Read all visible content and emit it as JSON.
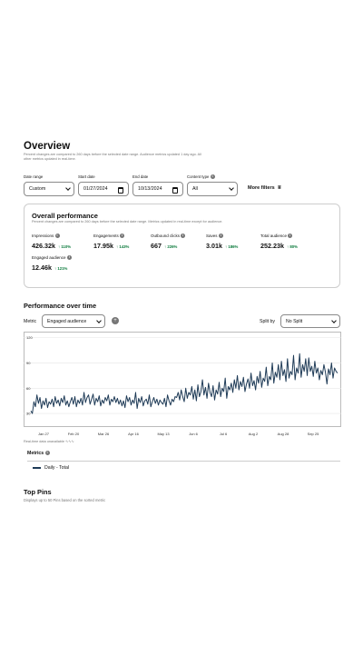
{
  "header": {
    "title": "Overview",
    "subtitle": "Percent changes are compared to 260 days before the selected date range. Audience metrics updated 1 day ago. All other metrics updated in real-time."
  },
  "filters": {
    "date_range_label": "Date range",
    "date_range_value": "Custom",
    "start_date_label": "Start date",
    "start_date_value": "01/27/2024",
    "end_date_label": "End date",
    "end_date_value": "10/13/2024",
    "content_type_label": "Content type",
    "content_type_value": "All",
    "more_filters": "More filters"
  },
  "overall": {
    "title": "Overall performance",
    "subtitle": "Percent changes are compared to 260 days before the selected date range. Metrics updated in real-time except for audience.",
    "metrics": [
      {
        "label": "Impressions",
        "value": "426.32k",
        "change": "110%"
      },
      {
        "label": "Engagements",
        "value": "17.95k",
        "change": "143%"
      },
      {
        "label": "Outbound clicks",
        "value": "667",
        "change": "226%"
      },
      {
        "label": "Saves",
        "value": "3.01k",
        "change": "186%"
      },
      {
        "label": "Total audience",
        "value": "252.23k",
        "change": "80%"
      },
      {
        "label": "Engaged audience",
        "value": "12.46k",
        "change": "121%"
      }
    ]
  },
  "performance": {
    "title": "Performance over time",
    "metric_label": "Metric",
    "metric_value": "Engaged audience",
    "split_label": "Split by",
    "split_value": "No Split",
    "note": "Real-time data unavailable",
    "metrics_label": "Metrics",
    "legend_label": "Daily - Total"
  },
  "top_pins": {
    "title": "Top Pins",
    "subtitle": "Displays up to 50 Pins based on the sorted metric"
  },
  "colors": {
    "line": "#1f3b57",
    "positive": "#0a7a3b",
    "grid": "#e6e6e6"
  },
  "chart_data": {
    "type": "line",
    "x_ticks": [
      "Jan 27",
      "Feb 20",
      "Mar 26",
      "Apr 16",
      "May 13",
      "Jun 6",
      "Jul 6",
      "Aug 2",
      "Aug 28",
      "Sep 25"
    ],
    "y_ticks": [
      30,
      60,
      90,
      120
    ],
    "ylim": [
      15,
      125
    ],
    "series": [
      {
        "name": "Daily - Total",
        "values": [
          33,
          30,
          44,
          38,
          52,
          42,
          49,
          36,
          45,
          40,
          48,
          37,
          44,
          41,
          47,
          38,
          50,
          42,
          46,
          39,
          48,
          43,
          51,
          40,
          45,
          38,
          44,
          49,
          41,
          50,
          38,
          46,
          42,
          48,
          40,
          55,
          43,
          49,
          52,
          41,
          47,
          53,
          40,
          48,
          44,
          51,
          39,
          46,
          42,
          49,
          45,
          52,
          40,
          47,
          44,
          50,
          43,
          48,
          41,
          46,
          39,
          45,
          37,
          51,
          44,
          49,
          40,
          46,
          42,
          55,
          36,
          48,
          43,
          50,
          39,
          45,
          47,
          41,
          52,
          38,
          44,
          49,
          42,
          47,
          40,
          46,
          43,
          41,
          48,
          38,
          52,
          45,
          40,
          47,
          44,
          50,
          49,
          55,
          46,
          58,
          50,
          44,
          60,
          48,
          55,
          52,
          62,
          47,
          58,
          45,
          64,
          50,
          56,
          70,
          52,
          61,
          48,
          66,
          55,
          50,
          63,
          46,
          58,
          53,
          67,
          50,
          60,
          56,
          72,
          48,
          62,
          58,
          66,
          55,
          70,
          60,
          75,
          58,
          68,
          62,
          73,
          56,
          65,
          71,
          60,
          78,
          63,
          69,
          58,
          74,
          66,
          80,
          61,
          72,
          68,
          85,
          63,
          74,
          70,
          90,
          66,
          79,
          73,
          88,
          70,
          92,
          75,
          82,
          68,
          95,
          72,
          80,
          76,
          99,
          70,
          84,
          78,
          101,
          73,
          88,
          80,
          95,
          75,
          96,
          80,
          86,
          74,
          92,
          78,
          84,
          70,
          81,
          76,
          88,
          79,
          65,
          83,
          76,
          90,
          72,
          84,
          80,
          78
        ]
      }
    ]
  }
}
